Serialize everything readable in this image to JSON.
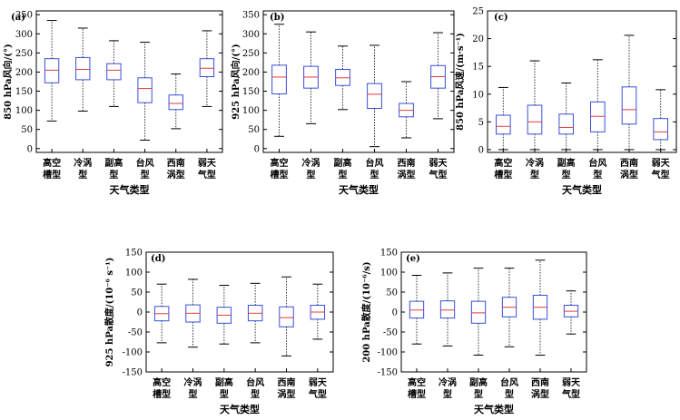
{
  "figure": {
    "xlabel": "天气类型"
  },
  "chart_data": [
    {
      "type": "box",
      "panel": "(a)",
      "ylabel": "850 hPa风向/(°)",
      "ylim": [
        -10,
        360
      ],
      "yticks": [
        0,
        50,
        100,
        150,
        200,
        250,
        300,
        350
      ],
      "xlabel": "天气类型",
      "categories": [
        [
          "高空",
          "槽型"
        ],
        [
          "冷涡",
          "型"
        ],
        [
          "副高",
          "型"
        ],
        [
          "台风",
          "型"
        ],
        [
          "西南",
          "涡型"
        ],
        [
          "弱天",
          "气型"
        ]
      ],
      "boxes": [
        {
          "whislo": 72,
          "q1": 172,
          "med": 205,
          "q3": 235,
          "whishi": 335
        },
        {
          "whislo": 98,
          "q1": 180,
          "med": 207,
          "q3": 238,
          "whishi": 315
        },
        {
          "whislo": 110,
          "q1": 180,
          "med": 205,
          "q3": 222,
          "whishi": 282
        },
        {
          "whislo": 22,
          "q1": 120,
          "med": 157,
          "q3": 185,
          "whishi": 278
        },
        {
          "whislo": 52,
          "q1": 102,
          "med": 118,
          "q3": 140,
          "whishi": 195
        },
        {
          "whislo": 110,
          "q1": 188,
          "med": 210,
          "q3": 235,
          "whishi": 308
        }
      ]
    },
    {
      "type": "box",
      "panel": "(b)",
      "ylabel": "925 hPa风向/(°)",
      "ylim": [
        -10,
        360
      ],
      "yticks": [
        0,
        50,
        100,
        150,
        200,
        250,
        300,
        350
      ],
      "xlabel": "天气类型",
      "categories": [
        [
          "高空",
          "槽型"
        ],
        [
          "冷涡",
          "型"
        ],
        [
          "副高",
          "型"
        ],
        [
          "台风",
          "型"
        ],
        [
          "西南",
          "涡型"
        ],
        [
          "弱天",
          "气型"
        ]
      ],
      "boxes": [
        {
          "whislo": 32,
          "q1": 143,
          "med": 187,
          "q3": 218,
          "whishi": 325
        },
        {
          "whislo": 65,
          "q1": 158,
          "med": 187,
          "q3": 215,
          "whishi": 305
        },
        {
          "whislo": 102,
          "q1": 165,
          "med": 185,
          "q3": 207,
          "whishi": 268
        },
        {
          "whislo": 5,
          "q1": 105,
          "med": 142,
          "q3": 170,
          "whishi": 270
        },
        {
          "whislo": 28,
          "q1": 83,
          "med": 100,
          "q3": 118,
          "whishi": 175
        },
        {
          "whislo": 78,
          "q1": 158,
          "med": 188,
          "q3": 217,
          "whishi": 303
        }
      ]
    },
    {
      "type": "box",
      "panel": "(c)",
      "ylabel": "850 hPa风速/(m·s⁻¹)",
      "ylim": [
        -0.5,
        25
      ],
      "yticks": [
        0,
        5,
        10,
        15,
        20,
        25
      ],
      "xlabel": "天气类型",
      "categories": [
        [
          "高空",
          "槽型"
        ],
        [
          "冷涡",
          "型"
        ],
        [
          "副高",
          "型"
        ],
        [
          "台风",
          "型"
        ],
        [
          "西南",
          "涡型"
        ],
        [
          "弱天",
          "气型"
        ]
      ],
      "boxes": [
        {
          "whislo": 0,
          "q1": 2.8,
          "med": 4.2,
          "q3": 6.2,
          "whishi": 11.2
        },
        {
          "whislo": 0,
          "q1": 2.8,
          "med": 5.0,
          "q3": 8.0,
          "whishi": 16.0
        },
        {
          "whislo": 0,
          "q1": 2.8,
          "med": 4.0,
          "q3": 6.4,
          "whishi": 12.0
        },
        {
          "whislo": 0,
          "q1": 3.2,
          "med": 6.0,
          "q3": 8.6,
          "whishi": 16.2
        },
        {
          "whislo": 0,
          "q1": 4.6,
          "med": 7.2,
          "q3": 11.3,
          "whishi": 20.6
        },
        {
          "whislo": 0,
          "q1": 1.8,
          "med": 3.2,
          "q3": 5.6,
          "whishi": 10.8
        }
      ]
    },
    {
      "type": "box",
      "panel": "(d)",
      "ylabel": "925 hPa散度/(10⁻⁶ s⁻¹)",
      "ylim": [
        -150,
        150
      ],
      "yticks": [
        -150,
        -100,
        -50,
        0,
        50,
        100,
        150
      ],
      "xlabel": "天气类型",
      "categories": [
        [
          "高空",
          "槽型"
        ],
        [
          "冷涡",
          "型"
        ],
        [
          "副高",
          "型"
        ],
        [
          "台风",
          "型"
        ],
        [
          "西南",
          "涡型"
        ],
        [
          "弱天",
          "气型"
        ]
      ],
      "boxes": [
        {
          "whislo": -77,
          "q1": -22,
          "med": -4,
          "q3": 14,
          "whishi": 70
        },
        {
          "whislo": -88,
          "q1": -25,
          "med": -3,
          "q3": 18,
          "whishi": 82
        },
        {
          "whislo": -80,
          "q1": -28,
          "med": -8,
          "q3": 12,
          "whishi": 67
        },
        {
          "whislo": -77,
          "q1": -22,
          "med": -3,
          "q3": 17,
          "whishi": 72
        },
        {
          "whislo": -110,
          "q1": -37,
          "med": -14,
          "q3": 13,
          "whishi": 88
        },
        {
          "whislo": -68,
          "q1": -18,
          "med": 0,
          "q3": 17,
          "whishi": 70
        }
      ]
    },
    {
      "type": "box",
      "panel": "(e)",
      "ylabel": "200 hPa散度/(10⁻⁶/s)",
      "ylim": [
        -150,
        150
      ],
      "yticks": [
        -150,
        -100,
        -50,
        0,
        50,
        100,
        150
      ],
      "xlabel": "天气类型",
      "categories": [
        [
          "高空",
          "槽型"
        ],
        [
          "冷涡",
          "型"
        ],
        [
          "副高",
          "型"
        ],
        [
          "台风",
          "型"
        ],
        [
          "西南",
          "涡型"
        ],
        [
          "弱天",
          "气型"
        ]
      ],
      "boxes": [
        {
          "whislo": -80,
          "q1": -15,
          "med": 5,
          "q3": 27,
          "whishi": 92
        },
        {
          "whislo": -85,
          "q1": -15,
          "med": 5,
          "q3": 28,
          "whishi": 98
        },
        {
          "whislo": -108,
          "q1": -28,
          "med": -2,
          "q3": 27,
          "whishi": 110
        },
        {
          "whislo": -87,
          "q1": -12,
          "med": 12,
          "q3": 37,
          "whishi": 110
        },
        {
          "whislo": -108,
          "q1": -18,
          "med": 12,
          "q3": 42,
          "whishi": 130
        },
        {
          "whislo": -55,
          "q1": -12,
          "med": 2,
          "q3": 17,
          "whishi": 53
        }
      ]
    }
  ]
}
